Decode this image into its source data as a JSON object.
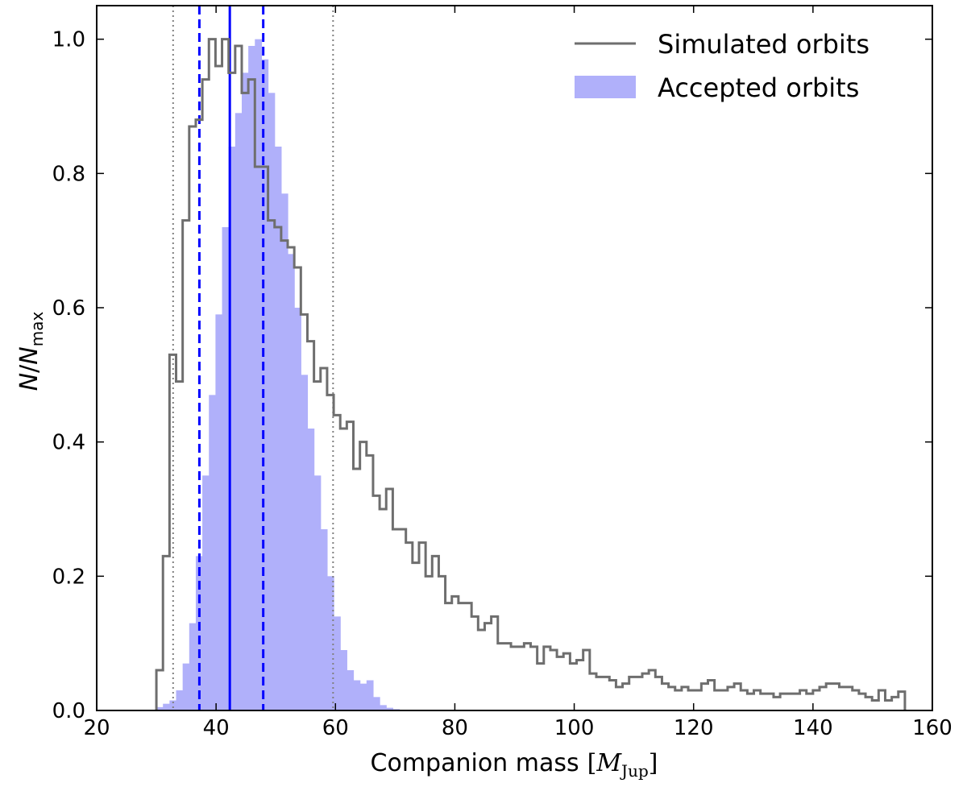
{
  "chart_data": {
    "type": "histogram",
    "xlabel": "Companion mass",
    "xlabel_unit_symbol": "M",
    "xlabel_unit_subscript": "Jup",
    "ylabel_numerator": "N",
    "ylabel_denominator": "N",
    "ylabel_subscript": "max",
    "xlim": [
      20,
      160
    ],
    "ylim": [
      0,
      1.05
    ],
    "xticks": [
      20,
      40,
      60,
      80,
      100,
      120,
      140,
      160
    ],
    "yticks": [
      0.0,
      0.2,
      0.4,
      0.6,
      0.8,
      1.0
    ],
    "xtick_labels": [
      "20",
      "40",
      "60",
      "80",
      "100",
      "120",
      "140",
      "160"
    ],
    "ytick_labels": [
      "0.0",
      "0.2",
      "0.4",
      "0.6",
      "0.8",
      "1.0"
    ],
    "grid": false,
    "legend_position": "top-right",
    "bin_start": 30,
    "bin_width": 1.1,
    "series": [
      {
        "name": "Simulated orbits",
        "style": "step",
        "color": "#6e6e6e",
        "values": [
          0.06,
          0.23,
          0.53,
          0.49,
          0.73,
          0.87,
          0.88,
          0.94,
          1.0,
          0.96,
          1.0,
          0.95,
          0.99,
          0.92,
          0.94,
          0.81,
          0.81,
          0.73,
          0.72,
          0.7,
          0.69,
          0.66,
          0.59,
          0.55,
          0.49,
          0.51,
          0.47,
          0.44,
          0.42,
          0.43,
          0.36,
          0.4,
          0.38,
          0.32,
          0.3,
          0.33,
          0.27,
          0.27,
          0.25,
          0.22,
          0.25,
          0.2,
          0.23,
          0.2,
          0.16,
          0.17,
          0.16,
          0.16,
          0.14,
          0.12,
          0.13,
          0.14,
          0.1,
          0.1,
          0.095,
          0.095,
          0.1,
          0.095,
          0.07,
          0.095,
          0.09,
          0.08,
          0.085,
          0.07,
          0.075,
          0.09,
          0.055,
          0.05,
          0.05,
          0.045,
          0.035,
          0.04,
          0.05,
          0.05,
          0.055,
          0.06,
          0.05,
          0.04,
          0.035,
          0.03,
          0.035,
          0.03,
          0.03,
          0.04,
          0.045,
          0.03,
          0.03,
          0.035,
          0.04,
          0.03,
          0.025,
          0.03,
          0.025,
          0.025,
          0.02,
          0.025,
          0.025,
          0.025,
          0.03,
          0.025,
          0.03,
          0.035,
          0.04,
          0.04,
          0.035,
          0.035,
          0.03,
          0.025,
          0.02,
          0.015,
          0.03,
          0.015,
          0.02,
          0.028
        ]
      },
      {
        "name": "Accepted orbits",
        "style": "filled",
        "color": "#b0b0fa",
        "values": [
          0.005,
          0.01,
          0.015,
          0.03,
          0.07,
          0.13,
          0.23,
          0.35,
          0.47,
          0.59,
          0.72,
          0.84,
          0.89,
          0.95,
          0.99,
          1.0,
          0.97,
          0.92,
          0.84,
          0.77,
          0.68,
          0.6,
          0.5,
          0.42,
          0.35,
          0.27,
          0.2,
          0.14,
          0.09,
          0.06,
          0.045,
          0.04,
          0.045,
          0.02,
          0.008,
          0.004,
          0.002
        ]
      }
    ],
    "vertical_lines": [
      {
        "x": 42.3,
        "style": "solid",
        "color": "#0000ff"
      },
      {
        "x": 37.2,
        "style": "dashed",
        "color": "#0000ff"
      },
      {
        "x": 47.9,
        "style": "dashed",
        "color": "#0000ff"
      },
      {
        "x": 32.8,
        "style": "dotted",
        "color": "#808080"
      },
      {
        "x": 59.6,
        "style": "dotted",
        "color": "#808080"
      }
    ]
  }
}
